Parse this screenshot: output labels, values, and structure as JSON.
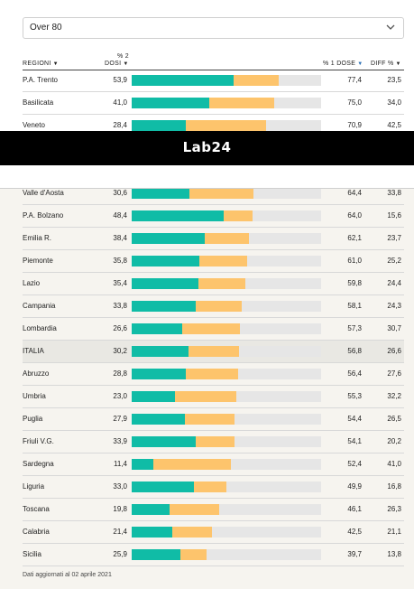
{
  "filter": {
    "selected": "Over 80",
    "chevron_icon": "chevron-down-icon"
  },
  "brand": {
    "logo_text": "Lab24"
  },
  "table": {
    "headers": {
      "region": "REGIONI",
      "dose2_top": "% 2",
      "dose2": "DOSI",
      "dose1": "% 1 DOSE",
      "diff": "DIFF %"
    }
  },
  "chart_data": {
    "type": "bar",
    "subtype": "overlapping-horizontal",
    "series": [
      {
        "name": "% 2 DOSI",
        "key": "dose2",
        "color": "#10bca6"
      },
      {
        "name": "% 1 DOSE",
        "key": "dose1",
        "color": "#fdc46c"
      }
    ],
    "xlim": [
      0,
      100
    ],
    "sort": "% 1 DOSE descending",
    "rows": [
      {
        "region": "P.A. Trento",
        "dose2": "53,9",
        "dose1": "77,4",
        "diff": "23,5",
        "v2": 53.9,
        "v1": 77.4
      },
      {
        "region": "Basilicata",
        "dose2": "41,0",
        "dose1": "75,0",
        "diff": "34,0",
        "v2": 41.0,
        "v1": 75.0
      },
      {
        "region": "Veneto",
        "dose2": "28,4",
        "dose1": "70,9",
        "diff": "42,5",
        "v2": 28.4,
        "v1": 70.9
      },
      {
        "region": "Valle d'Aosta",
        "dose2": "30,6",
        "dose1": "64,4",
        "diff": "33,8",
        "v2": 30.6,
        "v1": 64.4
      },
      {
        "region": "P.A. Bolzano",
        "dose2": "48,4",
        "dose1": "64,0",
        "diff": "15,6",
        "v2": 48.4,
        "v1": 64.0
      },
      {
        "region": "Emilia R.",
        "dose2": "38,4",
        "dose1": "62,1",
        "diff": "23,7",
        "v2": 38.4,
        "v1": 62.1
      },
      {
        "region": "Piemonte",
        "dose2": "35,8",
        "dose1": "61,0",
        "diff": "25,2",
        "v2": 35.8,
        "v1": 61.0
      },
      {
        "region": "Lazio",
        "dose2": "35,4",
        "dose1": "59,8",
        "diff": "24,4",
        "v2": 35.4,
        "v1": 59.8
      },
      {
        "region": "Campania",
        "dose2": "33,8",
        "dose1": "58,1",
        "diff": "24,3",
        "v2": 33.8,
        "v1": 58.1
      },
      {
        "region": "Lombardia",
        "dose2": "26,6",
        "dose1": "57,3",
        "diff": "30,7",
        "v2": 26.6,
        "v1": 57.3
      },
      {
        "region": "ITALIA",
        "dose2": "30,2",
        "dose1": "56,8",
        "diff": "26,6",
        "v2": 30.2,
        "v1": 56.8,
        "highlight": true
      },
      {
        "region": "Abruzzo",
        "dose2": "28,8",
        "dose1": "56,4",
        "diff": "27,6",
        "v2": 28.8,
        "v1": 56.4
      },
      {
        "region": "Umbria",
        "dose2": "23,0",
        "dose1": "55,3",
        "diff": "32,2",
        "v2": 23.0,
        "v1": 55.3
      },
      {
        "region": "Puglia",
        "dose2": "27,9",
        "dose1": "54,4",
        "diff": "26,5",
        "v2": 27.9,
        "v1": 54.4
      },
      {
        "region": "Friuli V.G.",
        "dose2": "33,9",
        "dose1": "54,1",
        "diff": "20,2",
        "v2": 33.9,
        "v1": 54.1
      },
      {
        "region": "Sardegna",
        "dose2": "11,4",
        "dose1": "52,4",
        "diff": "41,0",
        "v2": 11.4,
        "v1": 52.4
      },
      {
        "region": "Liguria",
        "dose2": "33,0",
        "dose1": "49,9",
        "diff": "16,8",
        "v2": 33.0,
        "v1": 49.9
      },
      {
        "region": "Toscana",
        "dose2": "19,8",
        "dose1": "46,1",
        "diff": "26,3",
        "v2": 19.8,
        "v1": 46.1
      },
      {
        "region": "Calabria",
        "dose2": "21,4",
        "dose1": "42,5",
        "diff": "21,1",
        "v2": 21.4,
        "v1": 42.5
      },
      {
        "region": "Sicilia",
        "dose2": "25,9",
        "dose1": "39,7",
        "diff": "13,8",
        "v2": 25.9,
        "v1": 39.7
      }
    ]
  },
  "footer": {
    "note": "Dati aggiornati al 02 aprile 2021"
  }
}
